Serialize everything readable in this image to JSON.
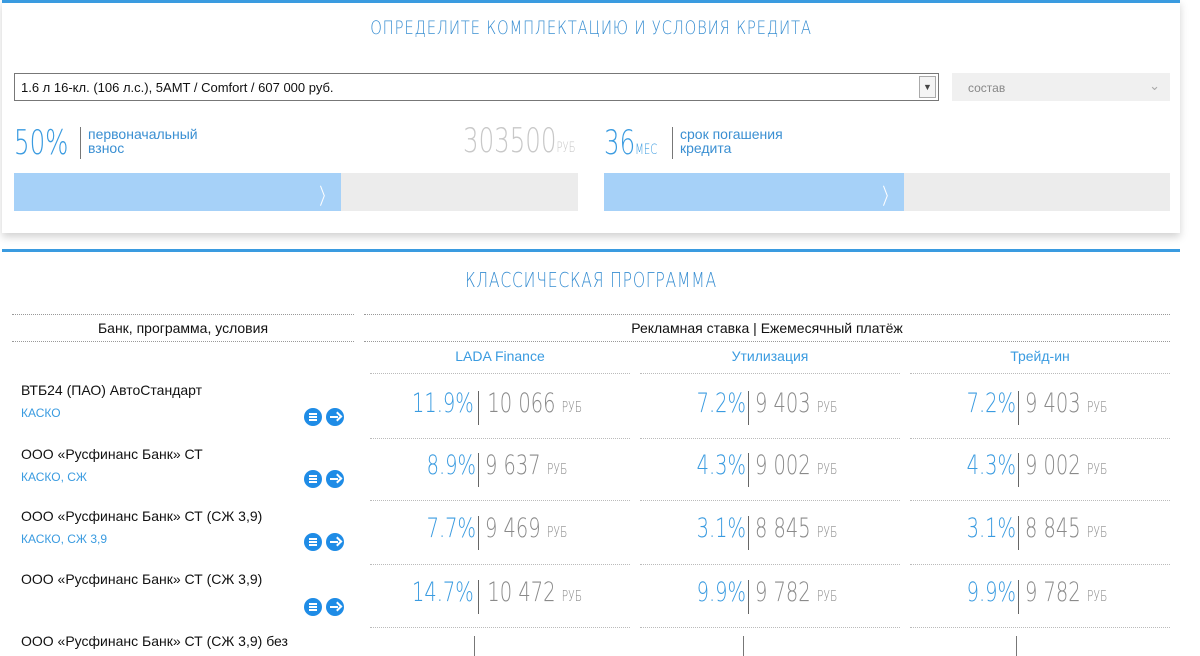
{
  "conditions": {
    "title": "ОПРЕДЕЛИТЕ КОМПЛЕКТАЦИЮ И УСЛОВИЯ КРЕДИТА",
    "config_value": "1.6 л 16-кл. (106 л.с.), 5AMT / Comfort / 607 000 руб.",
    "composition_label": "состав",
    "down_payment": {
      "percent": "50%",
      "label_line1": "первоначальный",
      "label_line2": "взнос",
      "amount": "303500",
      "amount_unit": "РУБ",
      "slider_level": 0.58
    },
    "term": {
      "months": "36",
      "unit": "МЕС",
      "label_line1": "срок погашения",
      "label_line2": "кредита",
      "slider_level": 0.53
    }
  },
  "program": {
    "title": "КЛАССИЧЕСКАЯ ПРОГРАММА",
    "col_bank_header": "Банк, программа, условия",
    "col_rates_header": "Рекламная ставка | Ежемесячный платёж",
    "subheaders": [
      "LADA Finance",
      "Утилизация",
      "Трейд-ин"
    ],
    "rows": [
      {
        "bank": "ВТБ24 (ПАО) АвтоСтандарт",
        "conditions": "КАСКО",
        "offers": [
          {
            "rate": "11.9%",
            "payment": "10 066",
            "unit": "РУБ"
          },
          {
            "rate": "7.2%",
            "payment": "9 403",
            "unit": "РУБ"
          },
          {
            "rate": "7.2%",
            "payment": "9 403",
            "unit": "РУБ"
          }
        ]
      },
      {
        "bank": "ООО «Русфинанс Банк» СТ",
        "conditions": "КАСКО, СЖ",
        "offers": [
          {
            "rate": "8.9%",
            "payment": "9 637",
            "unit": "РУБ"
          },
          {
            "rate": "4.3%",
            "payment": "9 002",
            "unit": "РУБ"
          },
          {
            "rate": "4.3%",
            "payment": "9 002",
            "unit": "РУБ"
          }
        ]
      },
      {
        "bank": "ООО «Русфинанс Банк» СТ (СЖ 3,9)",
        "conditions": "КАСКО, СЖ 3,9",
        "offers": [
          {
            "rate": "7.7%",
            "payment": "9 469",
            "unit": "РУБ"
          },
          {
            "rate": "3.1%",
            "payment": "8 845",
            "unit": "РУБ"
          },
          {
            "rate": "3.1%",
            "payment": "8 845",
            "unit": "РУБ"
          }
        ]
      },
      {
        "bank": "ООО «Русфинанс Банк» СТ (СЖ 3,9)",
        "conditions": "",
        "offers": [
          {
            "rate": "14.7%",
            "payment": "10 472",
            "unit": "РУБ"
          },
          {
            "rate": "9.9%",
            "payment": "9 782",
            "unit": "РУБ"
          },
          {
            "rate": "9.9%",
            "payment": "9 782",
            "unit": "РУБ"
          }
        ]
      }
    ],
    "partial_row_bank": "ООО «Русфинанс Банк» СТ (СЖ 3,9) без"
  }
}
